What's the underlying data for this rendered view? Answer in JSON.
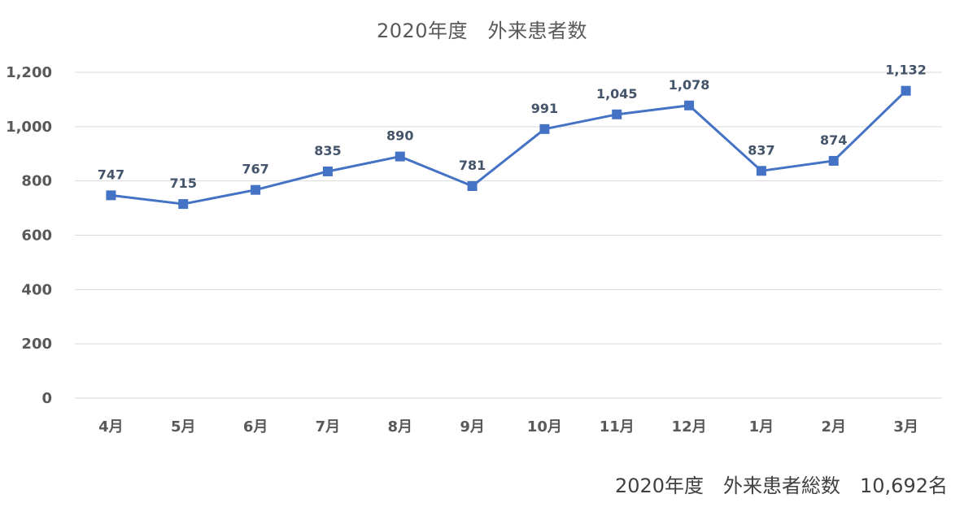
{
  "chart_data": {
    "type": "line",
    "title": "2020年度　外来患者数",
    "categories": [
      "4月",
      "5月",
      "6月",
      "7月",
      "8月",
      "9月",
      "10月",
      "11月",
      "12月",
      "1月",
      "2月",
      "3月"
    ],
    "values": [
      747,
      715,
      767,
      835,
      890,
      781,
      991,
      1045,
      1078,
      837,
      874,
      1132
    ],
    "value_labels": [
      "747",
      "715",
      "767",
      "835",
      "890",
      "781",
      "991",
      "1,045",
      "1,078",
      "837",
      "874",
      "1,132"
    ],
    "ylim": [
      0,
      1200
    ],
    "yticks": [
      0,
      200,
      400,
      600,
      800,
      1000,
      1200
    ],
    "ytick_labels": [
      "0",
      "200",
      "400",
      "600",
      "800",
      "1,000",
      "1,200"
    ],
    "xlabel": "",
    "ylabel": "",
    "grid": true,
    "marker": "square",
    "line_color": "#4472c4",
    "gridline_color": "#d9d9d9"
  },
  "footer_note": "2020年度　外来患者総数　10,692名"
}
